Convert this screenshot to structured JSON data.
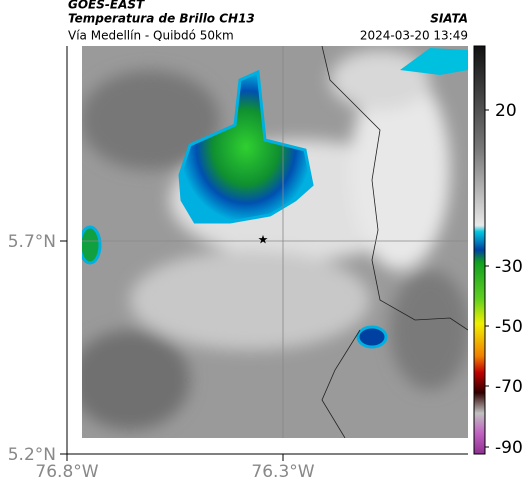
{
  "header": {
    "source": "GOES-EAST",
    "product": "Temperatura de Brillo CH13",
    "agency": "SIATA",
    "route": "Vía Medellín - Quibdó 50km",
    "timestamp": "2024-03-20 13:49"
  },
  "map": {
    "lat_labels": [
      "5.7°N",
      "5.2°N"
    ],
    "lon_labels": [
      "76.8°W",
      "76.3°W"
    ]
  },
  "colorbar": {
    "ticks": [
      20,
      -30,
      -50,
      -70,
      -90
    ]
  }
}
